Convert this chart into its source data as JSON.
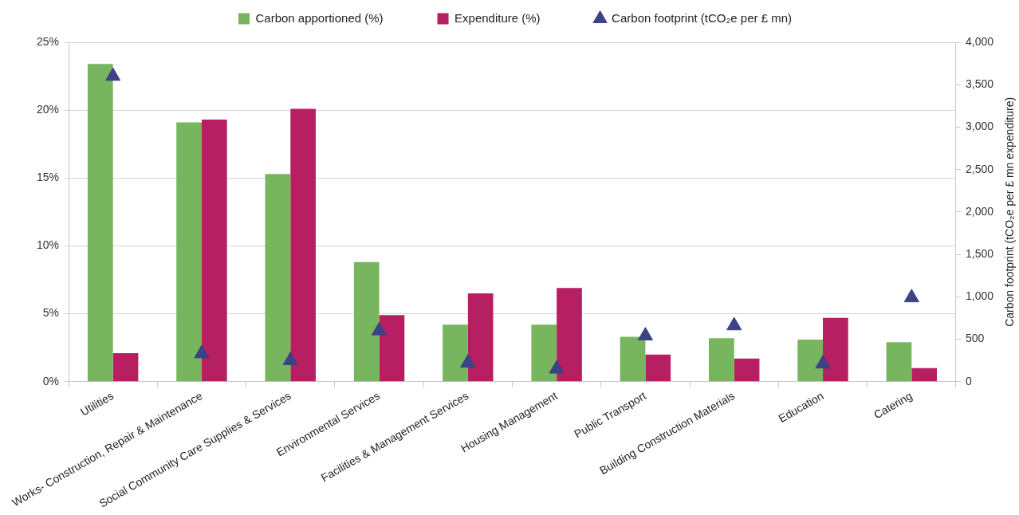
{
  "chart_data": {
    "type": "bar",
    "categories": [
      "Utilities",
      "Works- Construction, Repair & Maintenance",
      "Social Community Care Supplies & Services",
      "Environmental Services",
      "Facilities & Management Services",
      "Housing Management",
      "Public Transport",
      "Building Construction Materials",
      "Education",
      "Catering"
    ],
    "series": [
      {
        "name": "Carbon apportioned (%)",
        "color": "#77b55e",
        "values": [
          23.4,
          19.1,
          15.3,
          8.8,
          4.2,
          4.2,
          3.3,
          3.2,
          3.1,
          2.9
        ]
      },
      {
        "name": "Expenditure (%)",
        "color": "#b61f62",
        "values": [
          2.1,
          19.3,
          20.1,
          4.9,
          6.5,
          6.9,
          2.0,
          1.7,
          4.7,
          1.0
        ]
      },
      {
        "name": "Carbon footprint (tCO₂e per £ mn)",
        "type": "scatter",
        "axis": "y2",
        "marker": "triangle",
        "color": "#3b4285",
        "x": [
          "Utilities",
          "Works- Construction, Repair & Maintenance",
          "Social Community Care Supplies & Services",
          "Environmental Services",
          "Facilities & Management Services",
          "Housing Management",
          "Public Transport",
          "Building Construction Materials",
          "Education",
          "Catering"
        ],
        "values": [
          3600,
          330,
          250,
          600,
          220,
          150,
          540,
          660,
          210,
          990
        ]
      }
    ],
    "y2label": "Carbon footprint (tCO₂e per £ mn expenditure)",
    "ylim": [
      0,
      25
    ],
    "yticks": [
      {
        "value": 0,
        "label": "0%"
      },
      {
        "value": 5,
        "label": "5%"
      },
      {
        "value": 10,
        "label": "10%"
      },
      {
        "value": 15,
        "label": "15%"
      },
      {
        "value": 20,
        "label": "20%"
      },
      {
        "value": 25,
        "label": "25%"
      }
    ],
    "y2lim": [
      0,
      4000
    ],
    "y2ticks": [
      0,
      500,
      {
        "value": 1000,
        "label": "1,000"
      },
      {
        "value": 1500,
        "label": "1,500"
      },
      {
        "value": 2000,
        "label": "2,000"
      },
      {
        "value": 2500,
        "label": "2,500"
      },
      {
        "value": 3000,
        "label": "3,000"
      },
      {
        "value": 3500,
        "label": "3,500"
      },
      {
        "value": 4000,
        "label": "4,000"
      }
    ],
    "grid": "y",
    "legend": "top"
  }
}
